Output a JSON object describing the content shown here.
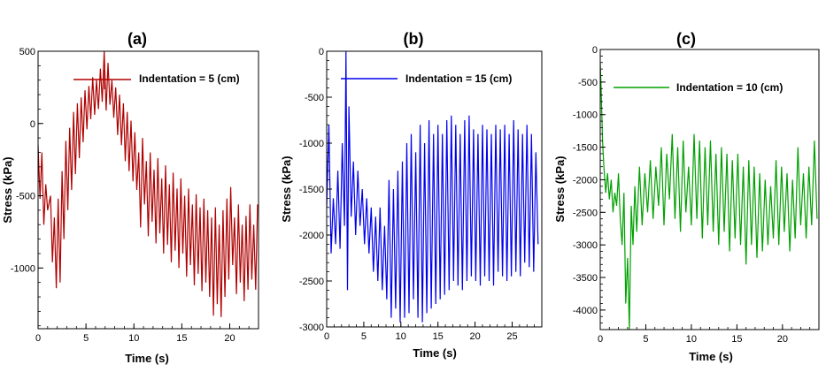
{
  "chart_data": [
    {
      "type": "line",
      "title": "(a)",
      "xlabel": "Time (s)",
      "ylabel": "Stress (kPa)",
      "xlim": [
        0,
        23
      ],
      "ylim": [
        -1420,
        500
      ],
      "xticks": [
        0,
        5,
        10,
        15,
        20
      ],
      "yticks": [
        -1000,
        -500,
        0,
        500
      ],
      "legend": "top-center",
      "grid": false,
      "series": [
        {
          "name": "Indentation = 5 (cm)",
          "color": "#b00000",
          "x": [
            0,
            0.2,
            0.4,
            0.6,
            0.8,
            1.0,
            1.3,
            1.5,
            1.7,
            1.9,
            2.1,
            2.3,
            2.5,
            2.7,
            2.9,
            3.1,
            3.3,
            3.5,
            3.7,
            3.9,
            4.1,
            4.3,
            4.5,
            4.7,
            4.9,
            5.1,
            5.3,
            5.5,
            5.7,
            5.9,
            6.1,
            6.3,
            6.5,
            6.7,
            6.9,
            7.1,
            7.3,
            7.5,
            7.7,
            7.9,
            8.1,
            8.3,
            8.5,
            8.7,
            8.9,
            9.1,
            9.3,
            9.5,
            9.7,
            9.9,
            10.1,
            10.3,
            10.5,
            10.7,
            10.9,
            11.1,
            11.3,
            11.5,
            11.7,
            11.9,
            12.1,
            12.3,
            12.5,
            12.7,
            12.9,
            13.1,
            13.3,
            13.5,
            13.7,
            13.9,
            14.1,
            14.3,
            14.5,
            14.7,
            14.9,
            15.1,
            15.3,
            15.5,
            15.7,
            15.9,
            16.1,
            16.3,
            16.5,
            16.7,
            16.9,
            17.1,
            17.3,
            17.5,
            17.7,
            17.9,
            18.1,
            18.3,
            18.5,
            18.7,
            18.9,
            19.1,
            19.3,
            19.5,
            19.7,
            19.9,
            20.1,
            20.3,
            20.5,
            20.7,
            20.9,
            21.1,
            21.3,
            21.5,
            21.7,
            21.9,
            22.1,
            22.3,
            22.5,
            22.7,
            22.9
          ],
          "y": [
            -150,
            -520,
            -200,
            -700,
            -420,
            -600,
            -500,
            -960,
            -650,
            -1140,
            -520,
            -1100,
            -330,
            -800,
            -120,
            -600,
            -30,
            -460,
            80,
            -350,
            140,
            -240,
            180,
            -130,
            230,
            -40,
            260,
            30,
            320,
            60,
            300,
            100,
            380,
            150,
            500,
            90,
            420,
            130,
            300,
            40,
            250,
            -80,
            200,
            -150,
            140,
            -260,
            80,
            -330,
            20,
            -400,
            -60,
            -460,
            -200,
            -720,
            -100,
            -560,
            -260,
            -780,
            -200,
            -680,
            -320,
            -830,
            -240,
            -760,
            -380,
            -900,
            -290,
            -840,
            -420,
            -960,
            -340,
            -880,
            -450,
            -1000,
            -380,
            -900,
            -500,
            -1060,
            -450,
            -980,
            -560,
            -1120,
            -490,
            -1040,
            -580,
            -1160,
            -520,
            -1100,
            -600,
            -1200,
            -650,
            -1330,
            -580,
            -1250,
            -700,
            -1340,
            -600,
            -1200,
            -520,
            -1080,
            -440,
            -980,
            -650,
            -1180,
            -560,
            -1100,
            -700,
            -1230,
            -640,
            -1150,
            -560,
            -1080,
            -700,
            -1150,
            -560
          ]
        }
      ]
    },
    {
      "type": "line",
      "title": "(b)",
      "xlabel": "Time (s)",
      "ylabel": "Stress (kPa)",
      "xlim": [
        0,
        29
      ],
      "ylim": [
        -3000,
        0
      ],
      "xticks": [
        0,
        5,
        10,
        15,
        20,
        25
      ],
      "yticks": [
        -3000,
        -2500,
        -2000,
        -1500,
        -1000,
        -500,
        0
      ],
      "legend": "top-center",
      "grid": false,
      "series": [
        {
          "name": "Indentation = 15 (cm)",
          "color": "#0000ee",
          "x": [
            0,
            0.3,
            0.6,
            0.9,
            1.2,
            1.5,
            1.8,
            2.1,
            2.4,
            2.6,
            2.8,
            3.0,
            3.3,
            3.6,
            3.9,
            4.2,
            4.5,
            4.8,
            5.1,
            5.4,
            5.7,
            6.0,
            6.3,
            6.6,
            6.9,
            7.2,
            7.5,
            7.8,
            8.1,
            8.4,
            8.7,
            9.0,
            9.3,
            9.6,
            9.9,
            10.2,
            10.5,
            10.8,
            11.1,
            11.4,
            11.7,
            12.0,
            12.3,
            12.6,
            12.9,
            13.2,
            13.5,
            13.8,
            14.1,
            14.4,
            14.7,
            15.0,
            15.3,
            15.6,
            15.9,
            16.2,
            16.5,
            16.8,
            17.1,
            17.4,
            17.7,
            18.0,
            18.3,
            18.6,
            18.9,
            19.2,
            19.5,
            19.8,
            20.1,
            20.4,
            20.7,
            21.0,
            21.3,
            21.6,
            21.9,
            22.2,
            22.5,
            22.8,
            23.1,
            23.4,
            23.7,
            24.0,
            24.3,
            24.6,
            24.9,
            25.2,
            25.5,
            25.8,
            26.1,
            26.4,
            26.7,
            27.0,
            27.3,
            27.6,
            27.9,
            28.2,
            28.5
          ],
          "y": [
            -1700,
            -800,
            -2200,
            -1600,
            -2100,
            -1300,
            -2150,
            -1000,
            -1900,
            0,
            -2600,
            -600,
            -1800,
            -1200,
            -2000,
            -1300,
            -1900,
            -1500,
            -2100,
            -1600,
            -2200,
            -1700,
            -2400,
            -1800,
            -2500,
            -1700,
            -2600,
            -1900,
            -2700,
            -1400,
            -2900,
            -1500,
            -2800,
            -1300,
            -2950,
            -1200,
            -2900,
            -1000,
            -2850,
            -900,
            -2700,
            -1100,
            -2900,
            -800,
            -2950,
            -1000,
            -2850,
            -750,
            -2800,
            -900,
            -2750,
            -800,
            -2700,
            -900,
            -2650,
            -750,
            -2600,
            -700,
            -2500,
            -800,
            -2550,
            -900,
            -2600,
            -750,
            -2500,
            -700,
            -2450,
            -850,
            -2500,
            -900,
            -2550,
            -800,
            -2450,
            -850,
            -2500,
            -900,
            -2550,
            -800,
            -2400,
            -850,
            -2450,
            -800,
            -2500,
            -900,
            -2450,
            -750,
            -2400,
            -850,
            -2450,
            -900,
            -2300,
            -800,
            -2350,
            -900,
            -2400,
            -1100,
            -2100
          ]
        }
      ]
    },
    {
      "type": "line",
      "title": "(c)",
      "xlabel": "Time (s)",
      "ylabel": "Stress (kPa)",
      "xlim": [
        0,
        24
      ],
      "ylim": [
        -4300,
        0
      ],
      "xticks": [
        0,
        5,
        10,
        15,
        20
      ],
      "yticks": [
        -4000,
        -3500,
        -3000,
        -2500,
        -2000,
        -1500,
        -1000,
        -500,
        0
      ],
      "legend": "top-center",
      "grid": false,
      "series": [
        {
          "name": "Indentation = 10 (cm)",
          "color": "#00a000",
          "x": [
            0,
            0.1,
            0.25,
            0.4,
            0.6,
            0.8,
            1.0,
            1.2,
            1.4,
            1.6,
            1.8,
            2.0,
            2.2,
            2.4,
            2.6,
            2.8,
            3.0,
            3.2,
            3.4,
            3.6,
            3.8,
            4.0,
            4.3,
            4.6,
            4.9,
            5.2,
            5.5,
            5.8,
            6.1,
            6.4,
            6.7,
            7.0,
            7.3,
            7.6,
            7.9,
            8.2,
            8.5,
            8.8,
            9.1,
            9.4,
            9.7,
            10.0,
            10.3,
            10.6,
            10.9,
            11.2,
            11.5,
            11.8,
            12.1,
            12.4,
            12.7,
            13.0,
            13.3,
            13.6,
            13.9,
            14.2,
            14.5,
            14.8,
            15.1,
            15.4,
            15.7,
            16.0,
            16.3,
            16.6,
            16.9,
            17.2,
            17.5,
            17.8,
            18.1,
            18.4,
            18.7,
            19.0,
            19.3,
            19.6,
            19.9,
            20.2,
            20.5,
            20.8,
            21.1,
            21.4,
            21.7,
            22.0,
            22.3,
            22.6,
            22.9,
            23.2,
            23.5,
            23.8
          ],
          "y": [
            -200,
            -600,
            -1400,
            -1800,
            -2200,
            -1900,
            -2300,
            -2000,
            -2500,
            -2200,
            -2400,
            -1900,
            -2600,
            -3000,
            -2200,
            -3900,
            -3200,
            -4300,
            -2400,
            -3000,
            -2100,
            -2800,
            -1800,
            -2700,
            -1900,
            -2500,
            -1700,
            -2600,
            -1800,
            -2400,
            -1500,
            -2700,
            -1600,
            -2300,
            -1300,
            -2600,
            -1500,
            -2800,
            -1400,
            -2500,
            -1800,
            -2700,
            -1300,
            -2600,
            -1400,
            -2900,
            -1500,
            -2700,
            -1400,
            -2800,
            -1600,
            -3000,
            -1500,
            -2800,
            -1600,
            -3100,
            -1700,
            -2900,
            -1600,
            -3000,
            -1800,
            -3300,
            -1700,
            -3000,
            -1800,
            -3200,
            -1900,
            -3100,
            -2000,
            -3000,
            -2100,
            -2900,
            -1700,
            -3000,
            -1800,
            -2800,
            -1900,
            -3100,
            -2000,
            -2900,
            -1500,
            -2700,
            -1900,
            -2900,
            -1800,
            -2700,
            -1400,
            -2600
          ]
        }
      ]
    }
  ]
}
